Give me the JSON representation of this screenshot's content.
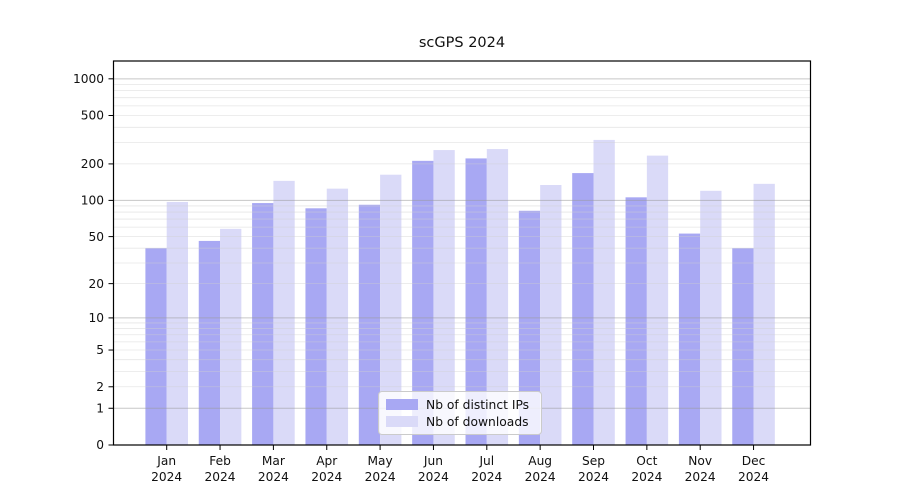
{
  "figure_title": "scGPS 2024",
  "chart_data": {
    "type": "bar",
    "title": "scGPS 2024",
    "xlabel": "",
    "ylabel": "",
    "yscale": "log1p",
    "ylim": [
      0,
      1400
    ],
    "grid": true,
    "y_ticks": [
      0,
      1,
      2,
      5,
      10,
      20,
      50,
      100,
      200,
      500,
      1000
    ],
    "y_major_gridlines": [
      1,
      10,
      100,
      1000
    ],
    "categories": [
      "Jan 2024",
      "Feb 2024",
      "Mar 2024",
      "Apr 2024",
      "May 2024",
      "Jun 2024",
      "Jul 2024",
      "Aug 2024",
      "Sep 2024",
      "Oct 2024",
      "Nov 2024",
      "Dec 2024"
    ],
    "series": [
      {
        "name": "Nb of distinct IPs",
        "color": "#a8a8f3",
        "values": [
          40,
          46,
          95,
          86,
          92,
          212,
          222,
          82,
          168,
          106,
          53,
          40
        ]
      },
      {
        "name": "Nb of downloads",
        "color": "#dadaf8",
        "values": [
          97,
          58,
          145,
          125,
          163,
          260,
          265,
          134,
          315,
          234,
          120,
          137
        ]
      }
    ],
    "legend": {
      "position": "lower center",
      "labels": [
        "Nb of distinct IPs",
        "Nb of downloads"
      ]
    }
  },
  "colors": {
    "background": "#ffffff",
    "spine": "#000000",
    "major_grid": "#9a9a9a",
    "minor_grid": "#cfcfcf",
    "text": "#111111"
  }
}
